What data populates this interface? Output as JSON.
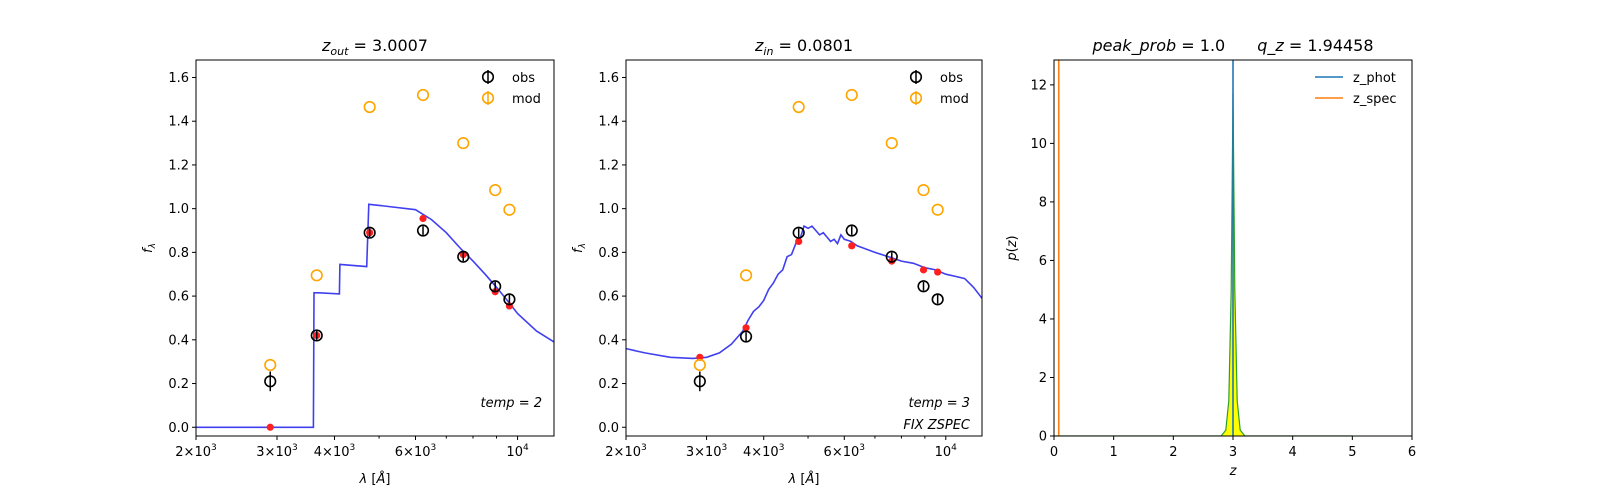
{
  "chart_data": [
    {
      "type": "scatter",
      "title": "z_out = 3.0007",
      "title_parts": {
        "sym": "z",
        "sub": "out",
        "rest": " = 3.0007"
      },
      "xlabel": "λ [Å]",
      "ylabel": "f_λ",
      "xscale": "log",
      "xlim": [
        2000,
        12000
      ],
      "ylim": [
        -0.04,
        1.68
      ],
      "xticks": [
        {
          "v": 2000,
          "mant": "2",
          "exp": "3"
        },
        {
          "v": 3000,
          "mant": "3",
          "exp": "3"
        },
        {
          "v": 4000,
          "mant": "4",
          "exp": "3"
        },
        {
          "v": 6000,
          "mant": "6",
          "exp": "3"
        },
        {
          "v": 10000,
          "mant": "",
          "exp": "4"
        }
      ],
      "yticks": [
        "0.0",
        "0.2",
        "0.4",
        "0.6",
        "0.8",
        "1.0",
        "1.2",
        "1.4",
        "1.6"
      ],
      "legend": [
        "obs",
        "mod"
      ],
      "legend_position": "top-right",
      "annotations": [
        "temp = 2"
      ],
      "obs": {
        "x": [
          2900,
          3660,
          4770,
          6230,
          7620,
          8940,
          9600
        ],
        "y": [
          0.21,
          0.42,
          0.89,
          0.9,
          0.78,
          0.645,
          0.585
        ],
        "yerr": [
          0.045,
          0.02,
          0.02,
          0.02,
          0.02,
          0.02,
          0.02
        ]
      },
      "mod": {
        "x": [
          2900,
          3660,
          4770,
          6230,
          7620,
          8940,
          9600
        ],
        "y": [
          0.285,
          0.695,
          1.465,
          1.52,
          1.3,
          1.085,
          0.995
        ]
      },
      "model_points": {
        "x": [
          2900,
          3660,
          4770,
          6230,
          7620,
          8940,
          9600
        ],
        "y": [
          0.0,
          0.42,
          0.89,
          0.955,
          0.79,
          0.62,
          0.555
        ]
      },
      "template": {
        "x": [
          2000,
          3600,
          3610,
          3700,
          4100,
          4110,
          4700,
          4750,
          5000,
          6000,
          6500,
          7000,
          7500,
          8000,
          8500,
          9000,
          9500,
          10000,
          11000,
          12000
        ],
        "y": [
          0.0,
          0.0,
          0.615,
          0.615,
          0.61,
          0.745,
          0.735,
          1.02,
          1.015,
          0.995,
          0.95,
          0.89,
          0.82,
          0.76,
          0.7,
          0.64,
          0.58,
          0.52,
          0.44,
          0.39
        ]
      }
    },
    {
      "type": "scatter",
      "title": "z_in = 0.0801",
      "title_parts": {
        "sym": "z",
        "sub": "in",
        "rest": " = 0.0801"
      },
      "xlabel": "λ [Å]",
      "ylabel": "f_λ",
      "xscale": "log",
      "xlim": [
        2000,
        12000
      ],
      "ylim": [
        -0.04,
        1.68
      ],
      "xticks": [
        {
          "v": 2000,
          "mant": "2",
          "exp": "3"
        },
        {
          "v": 3000,
          "mant": "3",
          "exp": "3"
        },
        {
          "v": 4000,
          "mant": "4",
          "exp": "3"
        },
        {
          "v": 6000,
          "mant": "6",
          "exp": "3"
        },
        {
          "v": 10000,
          "mant": "",
          "exp": "4"
        }
      ],
      "yticks": [
        "0.0",
        "0.2",
        "0.4",
        "0.6",
        "0.8",
        "1.0",
        "1.2",
        "1.4",
        "1.6"
      ],
      "legend": [
        "obs",
        "mod"
      ],
      "legend_position": "top-right",
      "annotations": [
        "temp = 3",
        "FIX ZSPEC"
      ],
      "obs": {
        "x": [
          2900,
          3660,
          4770,
          6230,
          7620,
          8940,
          9600
        ],
        "y": [
          0.21,
          0.415,
          0.89,
          0.9,
          0.78,
          0.645,
          0.585
        ],
        "yerr": [
          0.045,
          0.02,
          0.02,
          0.02,
          0.02,
          0.02,
          0.02
        ]
      },
      "mod": {
        "x": [
          2900,
          3660,
          4770,
          6230,
          7620,
          8940,
          9600
        ],
        "y": [
          0.285,
          0.695,
          1.465,
          1.52,
          1.3,
          1.085,
          0.995
        ]
      },
      "model_points": {
        "x": [
          2900,
          3660,
          4770,
          6230,
          7620,
          8940,
          9600
        ],
        "y": [
          0.32,
          0.455,
          0.85,
          0.83,
          0.76,
          0.72,
          0.71
        ]
      },
      "template": {
        "x": [
          2000,
          2200,
          2500,
          2800,
          3000,
          3200,
          3400,
          3600,
          3700,
          3800,
          3900,
          4000,
          4100,
          4200,
          4300,
          4400,
          4500,
          4600,
          4700,
          4800,
          4900,
          5000,
          5100,
          5200,
          5300,
          5400,
          5500,
          5600,
          5700,
          5800,
          5900,
          6000,
          6200,
          6400,
          6600,
          7000,
          7500,
          8000,
          8500,
          9000,
          9500,
          10000,
          10500,
          11000,
          11500,
          12000
        ],
        "y": [
          0.36,
          0.34,
          0.32,
          0.315,
          0.32,
          0.34,
          0.38,
          0.44,
          0.49,
          0.53,
          0.55,
          0.58,
          0.63,
          0.66,
          0.7,
          0.72,
          0.78,
          0.79,
          0.84,
          0.86,
          0.92,
          0.91,
          0.92,
          0.9,
          0.88,
          0.89,
          0.87,
          0.85,
          0.86,
          0.84,
          0.88,
          0.86,
          0.85,
          0.83,
          0.82,
          0.8,
          0.78,
          0.76,
          0.75,
          0.73,
          0.72,
          0.7,
          0.69,
          0.68,
          0.64,
          0.59
        ]
      }
    },
    {
      "type": "line",
      "title": "peak_prob = 1.0      q_z = 1.94458",
      "title_parts": {
        "a": "peak_prob",
        "a_rest": " = 1.0",
        "b": "q_z",
        "b_rest": " = 1.94458"
      },
      "xlabel": "z",
      "ylabel": "p(z)",
      "xlim": [
        0,
        6
      ],
      "ylim": [
        0,
        12.85
      ],
      "xticks": [
        0,
        1,
        2,
        3,
        4,
        5,
        6
      ],
      "yticks": [
        0,
        2,
        4,
        6,
        8,
        10,
        12
      ],
      "legend": [
        "z_phot",
        "z_spec"
      ],
      "legend_position": "top-right",
      "series": [
        {
          "name": "z_phot",
          "x": [
            3.0,
            3.0
          ],
          "y": [
            0,
            12.85
          ]
        },
        {
          "name": "z_spec",
          "x": [
            0.08,
            0.08
          ],
          "y": [
            0,
            12.85
          ]
        }
      ],
      "pdf": {
        "x": [
          0,
          2.8,
          2.88,
          2.93,
          2.97,
          3.0,
          3.03,
          3.07,
          3.12,
          3.2,
          5.0
        ],
        "y": [
          0,
          0,
          0.2,
          1.2,
          5.0,
          11.7,
          5.0,
          1.2,
          0.2,
          0,
          0
        ]
      }
    }
  ],
  "colors": {
    "obs": "#000000",
    "mod": "#ffa500",
    "model_points": "#ff2020",
    "template": "#4040f0",
    "z_phot": "#1f77b4",
    "z_spec": "#ff7f0e",
    "pdf_fill": "#ffff00",
    "pdf_line": "#2ca02c"
  }
}
